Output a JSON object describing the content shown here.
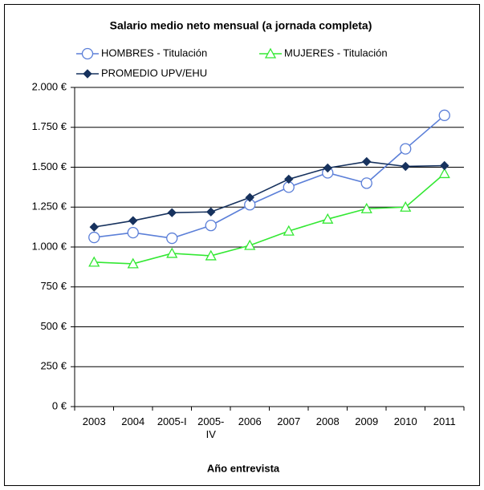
{
  "chart_data": {
    "type": "line",
    "title": "Salario medio neto mensual (a jornada completa)",
    "x_label": "Año entrevista",
    "categories": [
      "2003",
      "2004",
      "2005-I",
      "2005-IV",
      "2006",
      "2007",
      "2008",
      "2009",
      "2010",
      "2011"
    ],
    "series": [
      {
        "name": "HOMBRES - Titulación",
        "color": "#5b7fd8",
        "marker": "circle",
        "values": [
          1060,
          1090,
          1055,
          1135,
          1265,
          1375,
          1465,
          1400,
          1615,
          1825
        ]
      },
      {
        "name": "MUJERES - Titulación",
        "color": "#33e833",
        "marker": "triangle",
        "values": [
          905,
          895,
          960,
          945,
          1010,
          1100,
          1175,
          1240,
          1250,
          1460
        ]
      },
      {
        "name": "PROMEDIO UPV/EHU",
        "color": "#17325e",
        "marker": "diamond",
        "values": [
          1125,
          1165,
          1215,
          1220,
          1310,
          1425,
          1495,
          1535,
          1505,
          1510
        ]
      }
    ],
    "ylim": [
      0,
      2000
    ],
    "yticks": [
      {
        "value": 0,
        "label": "0 €"
      },
      {
        "value": 250,
        "label": "250 €"
      },
      {
        "value": 500,
        "label": "500 €"
      },
      {
        "value": 750,
        "label": "750 €"
      },
      {
        "value": 1000,
        "label": "1.000 €"
      },
      {
        "value": 1250,
        "label": "1.250 €"
      },
      {
        "value": 1500,
        "label": "1.500 €"
      },
      {
        "value": 1750,
        "label": "1.750 €"
      },
      {
        "value": 2000,
        "label": "2.000 €"
      }
    ],
    "grid": true
  }
}
